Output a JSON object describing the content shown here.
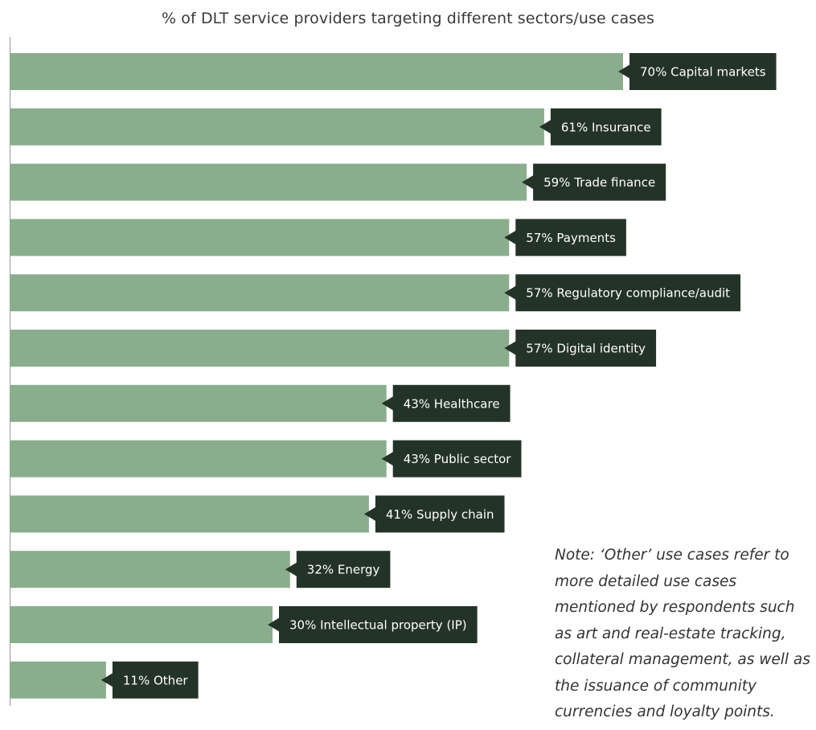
{
  "title": "% of DLT service providers targeting different sectors/use cases",
  "note": "Note: ‘Other’ use cases refer to more detailed use cases mentioned by respondents such as art and real-estate tracking, collateral management, as well as the issuance of community currencies and loyalty points.",
  "colors": {
    "bar": "#8aae8d",
    "label_bg": "#243328",
    "label_text": "#ffffff",
    "axis": "#999999"
  },
  "chart_data": {
    "type": "bar",
    "orientation": "horizontal",
    "title": "% of DLT service providers targeting different sectors/use cases",
    "xlim": [
      0,
      100
    ],
    "grid": false,
    "categories": [
      "Capital markets",
      "Insurance",
      "Trade finance",
      "Payments",
      "Regulatory compliance/audit",
      "Digital identity",
      "Healthcare",
      "Public sector",
      "Supply chain",
      "Energy",
      "Intellectual property (IP)",
      "Other"
    ],
    "values": [
      70,
      61,
      59,
      57,
      57,
      57,
      43,
      43,
      41,
      32,
      30,
      11
    ],
    "labels": [
      "70% Capital markets",
      "61% Insurance",
      "59% Trade finance",
      "57% Payments",
      "57% Regulatory compliance/audit",
      "57% Digital identity",
      "43% Healthcare",
      "43% Public sector",
      "41% Supply chain",
      "32% Energy",
      "30% Intellectual property (IP)",
      "11% Other"
    ]
  }
}
